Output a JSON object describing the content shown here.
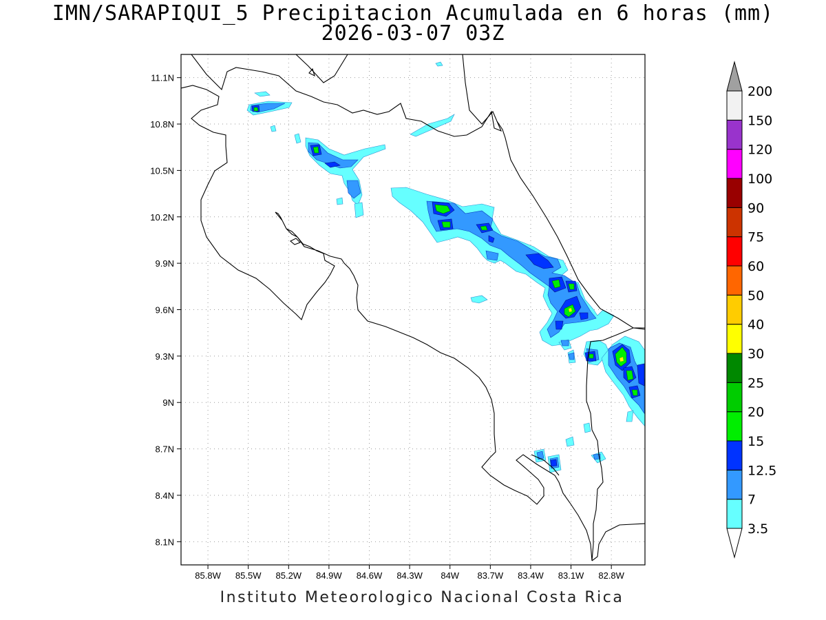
{
  "title": {
    "line1": "IMN/SARAPIQUI_5 Precipitacion Acumulada en 6 horas (mm)",
    "line2": "2026-03-07 03Z"
  },
  "footer": "Instituto Meteorologico Nacional Costa Rica",
  "map": {
    "lon_range": [
      -86.0,
      -82.55
    ],
    "lat_range": [
      7.95,
      11.25
    ],
    "x_ticks": [
      "85.8W",
      "85.5W",
      "85.2W",
      "84.9W",
      "84.6W",
      "84.3W",
      "84W",
      "83.7W",
      "83.4W",
      "83.1W",
      "82.8W"
    ],
    "x_tick_values": [
      -85.8,
      -85.5,
      -85.2,
      -84.9,
      -84.6,
      -84.3,
      -84.0,
      -83.7,
      -83.4,
      -83.1,
      -82.8
    ],
    "y_ticks": [
      "11.1N",
      "10.8N",
      "10.5N",
      "10.2N",
      "9.9N",
      "9.6N",
      "9.3N",
      "9N",
      "8.7N",
      "8.4N",
      "8.1N"
    ],
    "y_tick_values": [
      11.1,
      10.8,
      10.5,
      10.2,
      9.9,
      9.6,
      9.3,
      9.0,
      8.7,
      8.4,
      8.1
    ],
    "grid": "dotted"
  },
  "colorbar": {
    "labels": [
      "3.5",
      "7",
      "12.5",
      "15",
      "20",
      "25",
      "30",
      "40",
      "50",
      "60",
      "75",
      "90",
      "100",
      "120",
      "150",
      "200"
    ],
    "colors": [
      "#66ffff",
      "#3399ff",
      "#0033ff",
      "#00ee00",
      "#00cc00",
      "#008800",
      "#ffff00",
      "#ffcc00",
      "#ff6600",
      "#ff0000",
      "#cc3300",
      "#990000",
      "#ff00ff",
      "#9933cc",
      "#f2f2f2",
      "#a0a0a0"
    ]
  }
}
